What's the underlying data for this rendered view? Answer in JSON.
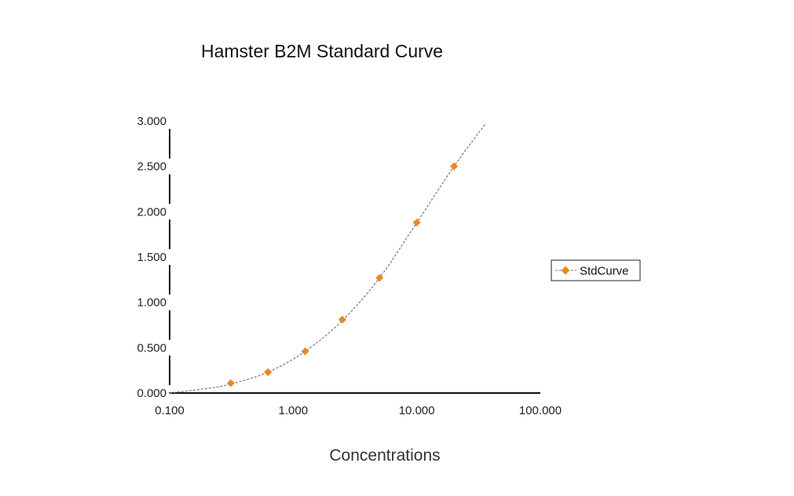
{
  "chart_data": {
    "type": "scatter",
    "title": "Hamster B2M Standard Curve",
    "xlabel": "Concentrations",
    "ylabel": "",
    "xscale": "log",
    "xlim": [
      0.1,
      100
    ],
    "ylim": [
      0,
      3
    ],
    "xticks": [
      "0.100",
      "1.000",
      "10.000",
      "100.000"
    ],
    "yticks": [
      "0.000",
      "0.500",
      "1.000",
      "1.500",
      "2.000",
      "2.500",
      "3.000"
    ],
    "ytick_values": [
      0,
      0.5,
      1,
      1.5,
      2,
      2.5,
      3
    ],
    "xtick_values": [
      0.1,
      1,
      10,
      100
    ],
    "grid": false,
    "legend_position": "right",
    "series": [
      {
        "name": "StdCurve",
        "color": "#E8891F",
        "marker": "diamond",
        "x": [
          0.3125,
          0.625,
          1.25,
          2.5,
          5,
          10,
          20
        ],
        "y": [
          0.11,
          0.23,
          0.46,
          0.81,
          1.27,
          1.88,
          2.5
        ]
      }
    ],
    "fit_line": {
      "style": "dashed",
      "color": "#777777",
      "x": [
        0.1,
        0.2,
        0.3125,
        0.625,
        1.25,
        2.5,
        5,
        10,
        20,
        36
      ],
      "y": [
        0.0,
        0.05,
        0.1,
        0.23,
        0.46,
        0.8,
        1.27,
        1.88,
        2.5,
        2.97
      ]
    }
  }
}
